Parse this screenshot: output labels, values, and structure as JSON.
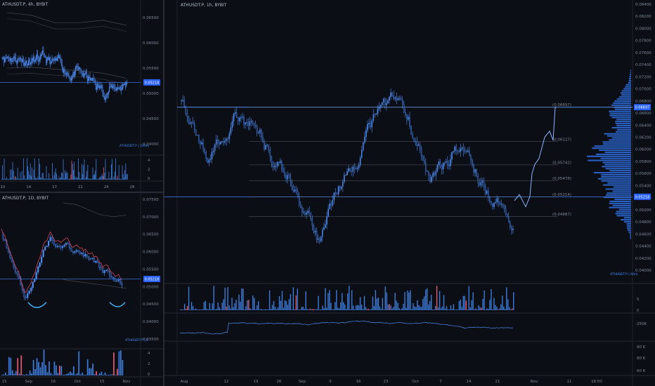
{
  "panes": {
    "top_left": {
      "title": "ATHUSDT.P, 4h, BYBIT",
      "price_ticks": [
        "0.06500",
        "0.06000",
        "0.05500",
        "0.05000",
        "0.04500",
        "0.04000"
      ],
      "current_price_tag": "0.05218",
      "watermark": "ATHUSDT.P | 240m",
      "volume_ticks": [
        "4",
        "2",
        "0"
      ],
      "date_ticks": [
        "10",
        "14",
        "17",
        "21",
        "24",
        "28"
      ]
    },
    "bottom_left": {
      "title": "ATHUSDT.P, 1D, BYBIT",
      "price_ticks": [
        "0.07500",
        "0.07000",
        "0.06500",
        "0.06000",
        "0.05500",
        "0.05000",
        "0.04500",
        "0.04000",
        "0.03500"
      ],
      "current_price_tag": "0.05218",
      "watermark": "ATHUSDT.P | D",
      "volume_ticks": [
        "4",
        "2",
        "0"
      ],
      "date_ticks": [
        "15",
        "Sep",
        "16",
        "Oct",
        "15",
        "Nov"
      ]
    },
    "main": {
      "title": "ATHUSDT.P, 1h, BYBIT",
      "price_ticks": [
        "0.08400",
        "0.08200",
        "0.08000",
        "0.07800",
        "0.07600",
        "0.07400",
        "0.07200",
        "0.07000",
        "0.06800",
        "0.06600",
        "0.06400",
        "0.06200",
        "0.06000",
        "0.05800",
        "0.05600",
        "0.05400",
        "0.05200",
        "0.05000",
        "0.04800",
        "0.04600",
        "0.04400",
        "0.04200",
        "0.04000"
      ],
      "target_price_tag": "0.06697",
      "current_price_tag": "0.05218",
      "fib_labels": [
        "(0.06697)",
        "(0.06127)",
        "(0.05742)",
        "(0.05478)",
        "(0.05214)",
        "(0.04887)"
      ],
      "watermark": "ATHUSDT.P | 60m",
      "volume_ticks": [
        "5",
        "0"
      ],
      "indicator_ticks": [
        "-250K"
      ],
      "rsi_ticks": [
        "90 K",
        "80 K",
        "60 K"
      ],
      "date_ticks": [
        "Aug",
        "12",
        "19",
        "26",
        "Sep",
        "9",
        "16",
        "23",
        "Oct",
        "7",
        "14",
        "21",
        "Nov",
        "11",
        "18:00"
      ]
    }
  },
  "colors": {
    "background": "#0b0e14",
    "candles": "#4f8ff7",
    "level_line": "#3a6fd8",
    "tag": "#2962ff",
    "volume": "#3d7bd9",
    "volume_highlight": "#e0596c",
    "profile": "#2f6fe0"
  },
  "chart_data": [
    {
      "type": "line",
      "title": "ATHUSDT.P, 4h, BYBIT",
      "x": [
        "10",
        "14",
        "17",
        "21",
        "24",
        "28"
      ],
      "series": [
        {
          "values": [
            0.058,
            0.057,
            0.0555,
            0.054,
            0.0505,
            0.052
          ]
        }
      ],
      "ylim": [
        0.04,
        0.066
      ]
    },
    {
      "type": "line",
      "title": "ATHUSDT.P, 1D, BYBIT",
      "x": [
        "15",
        "Sep",
        "16",
        "Oct",
        "15",
        "Nov"
      ],
      "series": [
        {
          "values": [
            0.066,
            0.047,
            0.064,
            0.06,
            0.056,
            0.05
          ]
        }
      ],
      "ylim": [
        0.035,
        0.076
      ]
    },
    {
      "type": "line",
      "title": "ATHUSDT.P, 1h, BYBIT",
      "x": [
        "Aug",
        "12",
        "19",
        "26",
        "Sep",
        "9",
        "16",
        "23",
        "Oct",
        "7",
        "14",
        "21",
        "Nov"
      ],
      "series": [
        {
          "values": [
            0.069,
            0.058,
            0.066,
            0.061,
            0.055,
            0.045,
            0.056,
            0.064,
            0.068,
            0.056,
            0.06,
            0.053,
            0.049
          ]
        }
      ],
      "ylim": [
        0.04,
        0.084
      ]
    }
  ]
}
